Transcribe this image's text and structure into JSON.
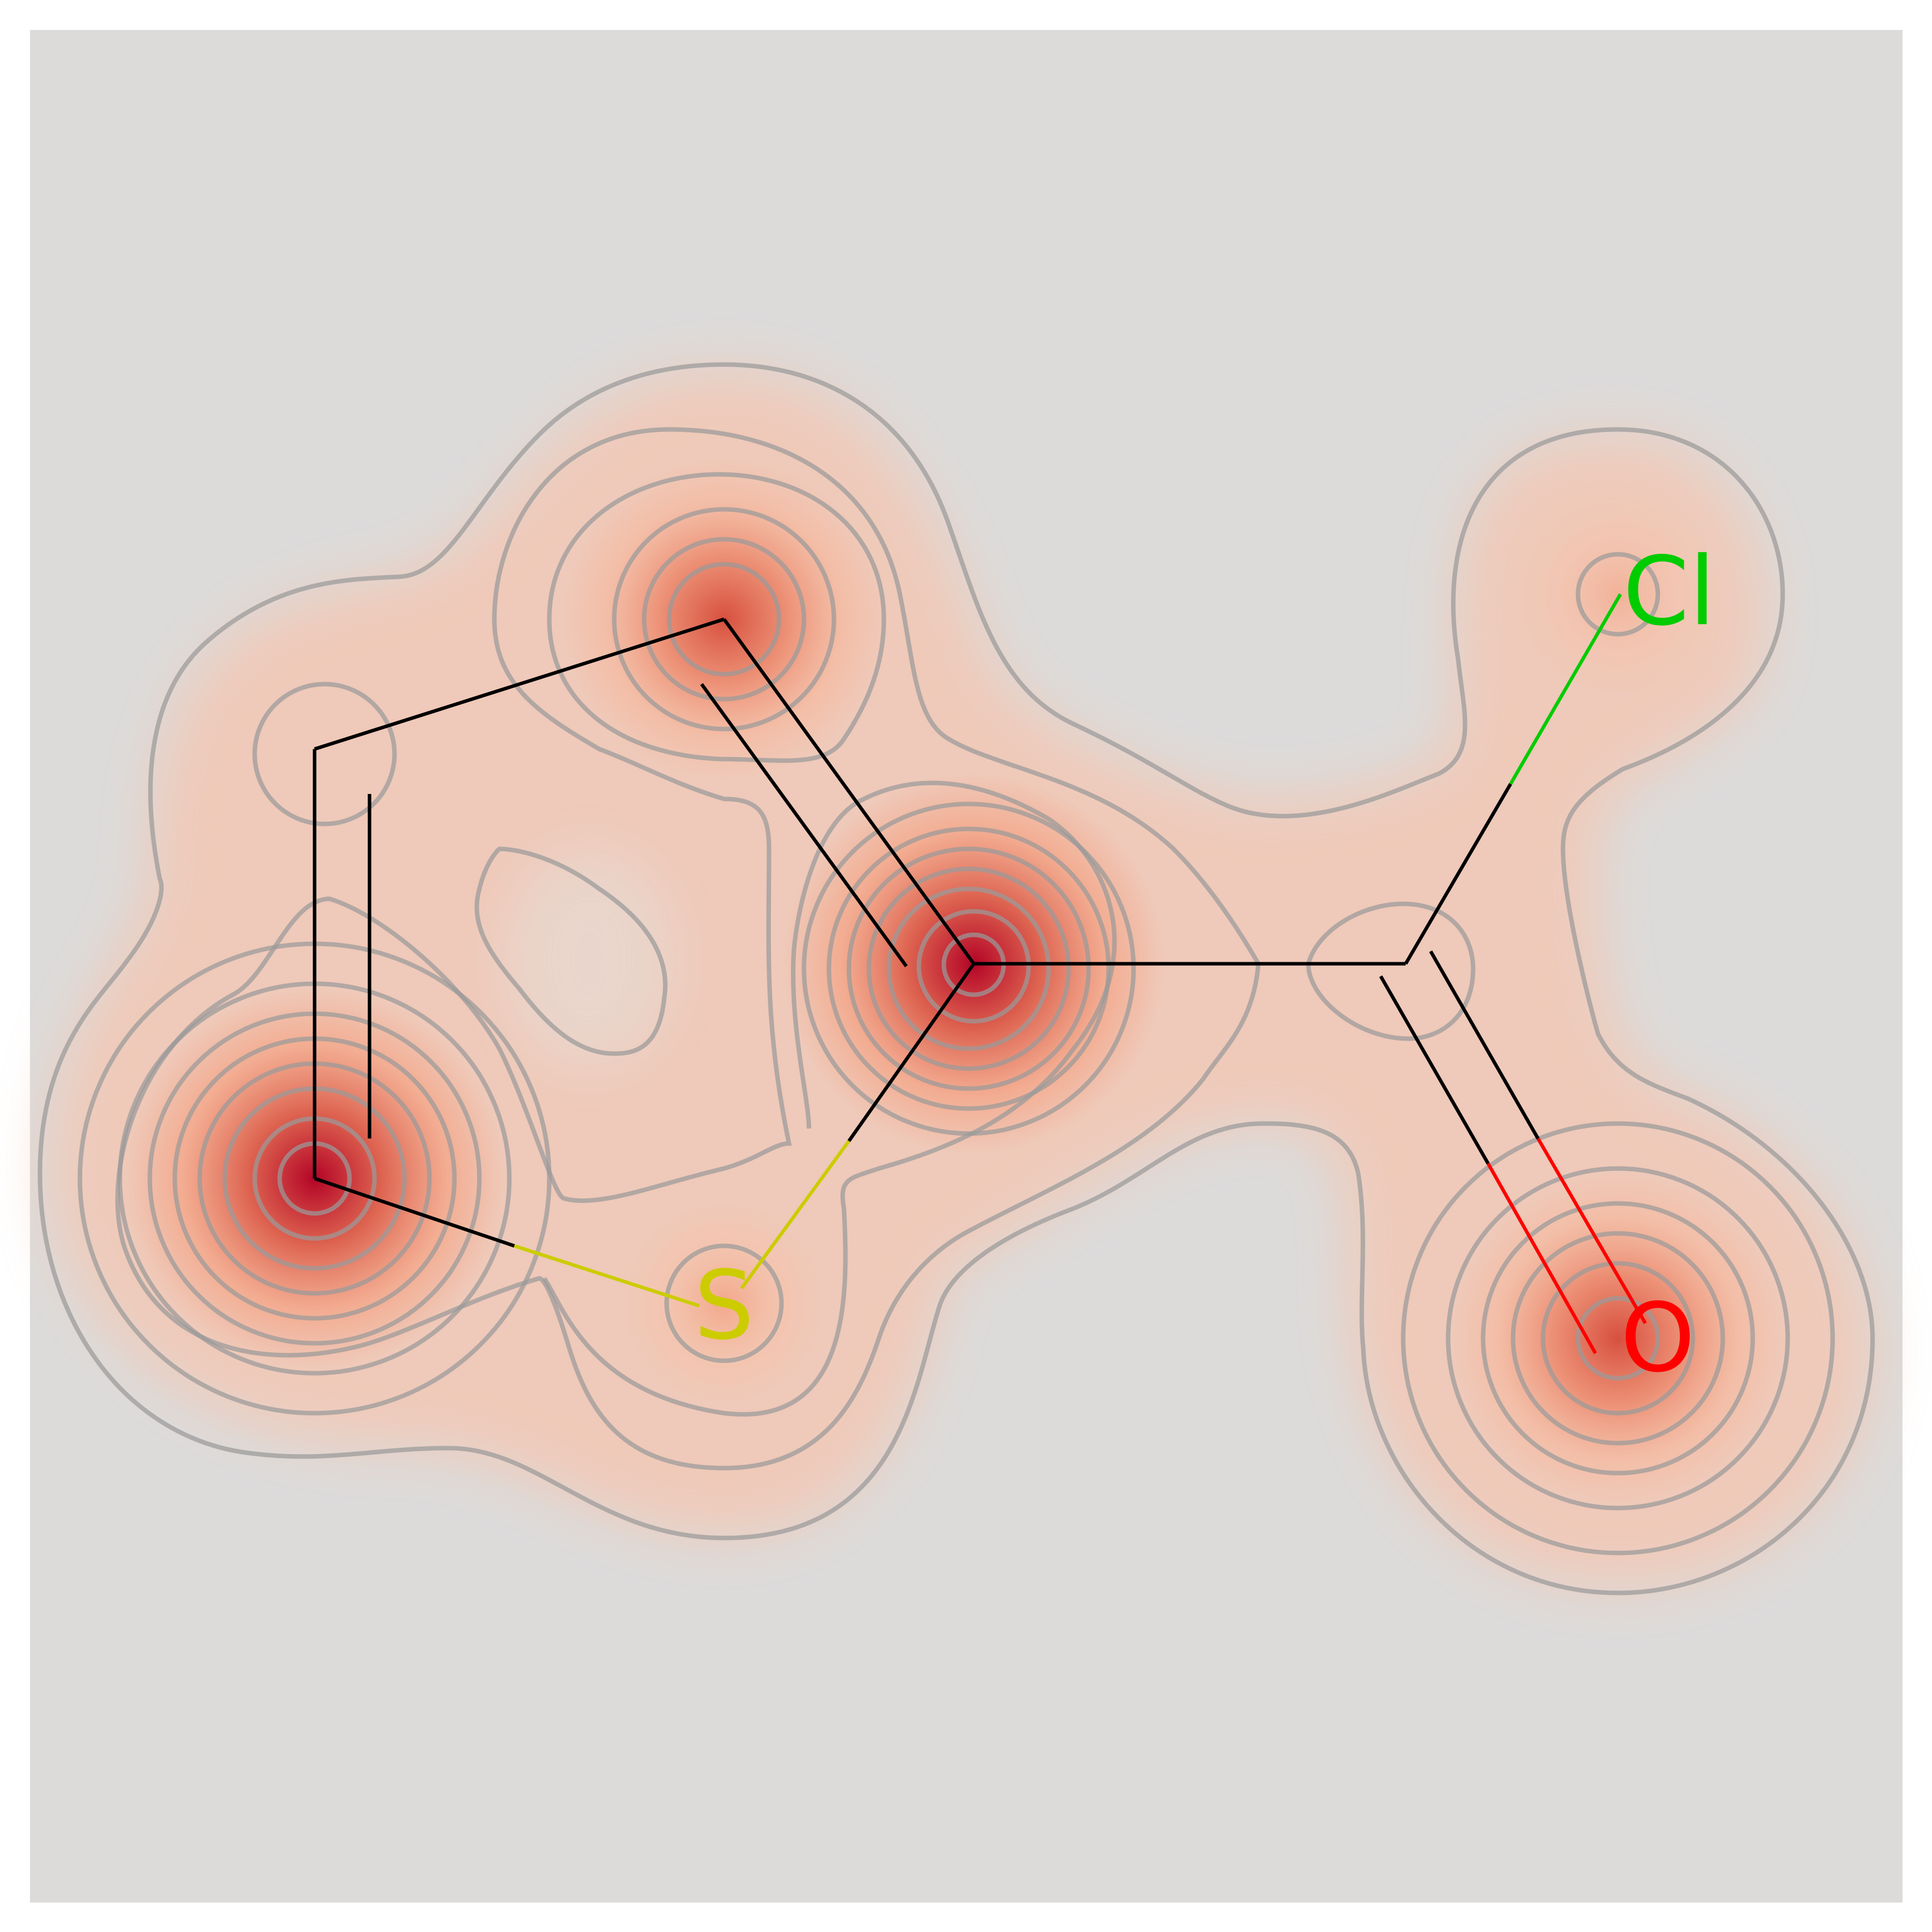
{
  "molecule": {
    "atoms": [
      {
        "id": "c1",
        "element": "C",
        "label": ""
      },
      {
        "id": "c2",
        "element": "C",
        "label": ""
      },
      {
        "id": "c3",
        "element": "C",
        "label": ""
      },
      {
        "id": "c4",
        "element": "C",
        "label": ""
      },
      {
        "id": "s1",
        "element": "S",
        "label": "S"
      },
      {
        "id": "c5",
        "element": "C",
        "label": ""
      },
      {
        "id": "cl1",
        "element": "Cl",
        "label": "Cl"
      },
      {
        "id": "o1",
        "element": "O",
        "label": "O"
      }
    ],
    "bonds": [
      {
        "from": "c1",
        "to": "c2",
        "order": 1
      },
      {
        "from": "c2",
        "to": "c3",
        "order": 2
      },
      {
        "from": "c3",
        "to": "c4",
        "order": 1
      },
      {
        "from": "c4",
        "to": "s1",
        "order": 1
      },
      {
        "from": "s1",
        "to": "c1",
        "order": 1
      },
      {
        "from": "c4",
        "to": "c5",
        "order": 1
      },
      {
        "from": "c5",
        "to": "cl1",
        "order": 1
      },
      {
        "from": "c5",
        "to": "o1",
        "order": 2
      }
    ]
  },
  "colors": {
    "background": "#dcdbda",
    "bond": "#000000",
    "S": "#cccc00",
    "Cl": "#00cc00",
    "O": "#ff0000",
    "contour": "#9a9a9a",
    "heat_low": "#f6b79c",
    "heat_high": "#b40426"
  }
}
